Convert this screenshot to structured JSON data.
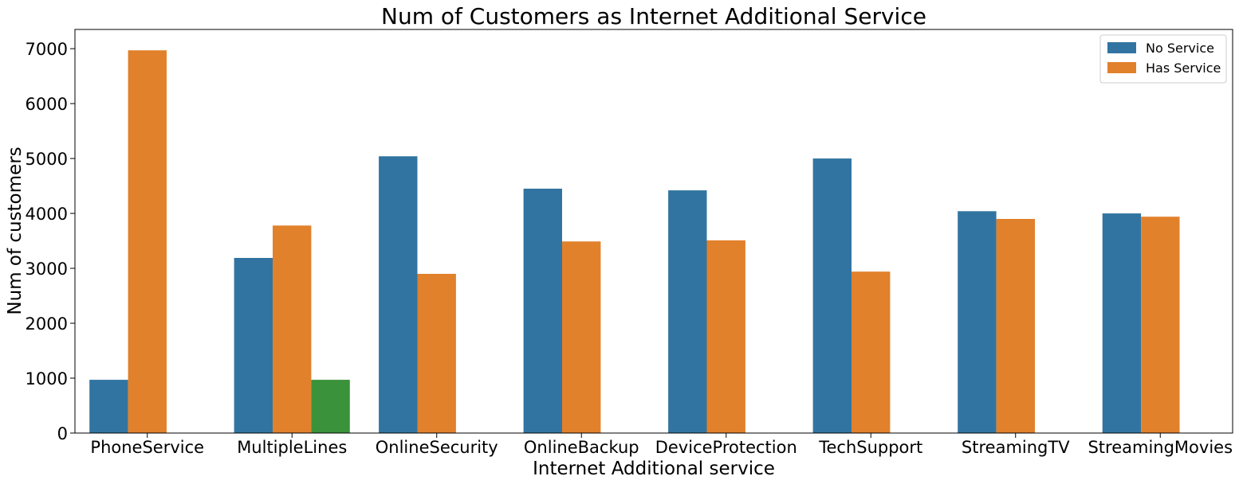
{
  "chart_data": {
    "type": "bar",
    "title": "Num of Customers as Internet Additional Service",
    "xlabel": "Internet Additional service",
    "ylabel": "Num of customers",
    "categories": [
      "PhoneService",
      "MultipleLines",
      "OnlineSecurity",
      "OnlineBackup",
      "DeviceProtection",
      "TechSupport",
      "StreamingTV",
      "StreamingMovies"
    ],
    "series": [
      {
        "name": "No Service",
        "color": "#3274a1",
        "values": [
          970,
          3190,
          5040,
          4450,
          4420,
          5000,
          4040,
          4000
        ]
      },
      {
        "name": "Has Service",
        "color": "#e1812c",
        "values": [
          6970,
          3780,
          2900,
          3490,
          3510,
          2940,
          3900,
          3940
        ]
      },
      {
        "name": "",
        "color": "#3a923a",
        "values": [
          null,
          970,
          null,
          null,
          null,
          null,
          null,
          null
        ]
      }
    ],
    "ylim": [
      0,
      7350
    ],
    "yticks": [
      0,
      1000,
      2000,
      3000,
      4000,
      5000,
      6000,
      7000
    ],
    "grid": false,
    "legend_position": "top-right"
  }
}
